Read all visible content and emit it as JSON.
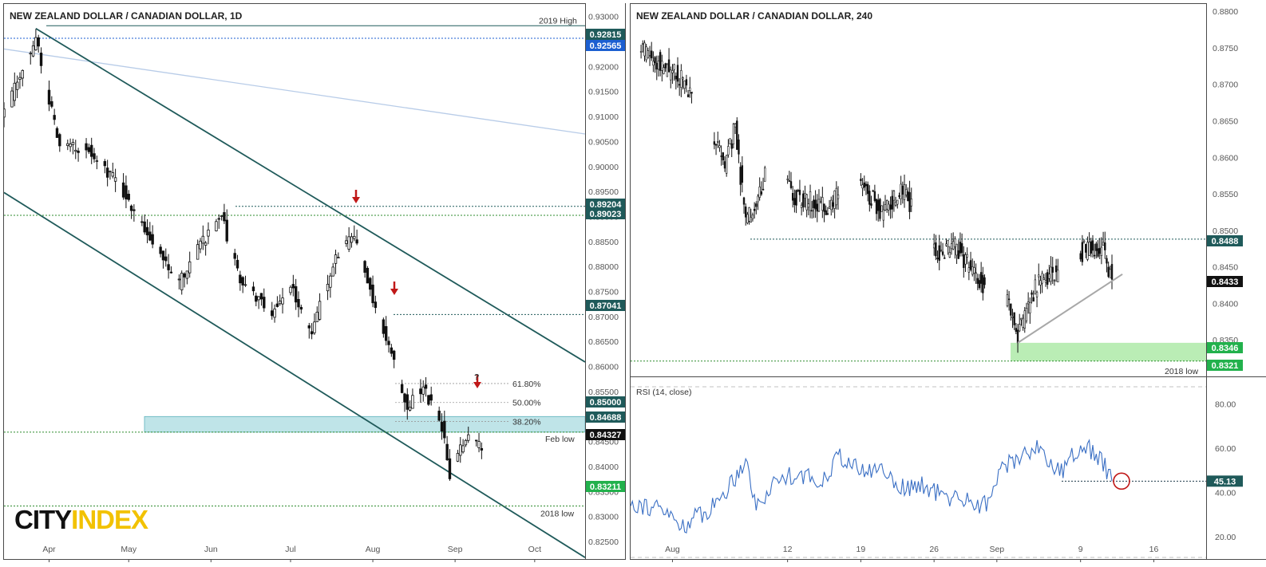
{
  "colors": {
    "candle": "#111111",
    "channel": "#1f5a5a",
    "level_green": "#2e8b2e",
    "level_blue": "#1c5fd1",
    "zone_teal": "#a9dbe0",
    "support_green": "#a9e8a3",
    "rsi_line": "#3a6fc4",
    "arrow_red": "#c01818",
    "tag_teal": "#1f5a5a",
    "tag_blue": "#1c5fd1",
    "tag_green": "#22b14c",
    "tag_black": "#111111"
  },
  "left_chart": {
    "title": "NEW ZEALAND DOLLAR / CANADIAN DOLLAR, 1D",
    "x_labels": [
      "Apr",
      "May",
      "Jun",
      "Jul",
      "Aug",
      "Sep",
      "Oct"
    ],
    "y_labels": [
      "0.93000",
      "0.92500",
      "0.92000",
      "0.91500",
      "0.91000",
      "0.90500",
      "0.90000",
      "0.89500",
      "0.89000",
      "0.88500",
      "0.88000",
      "0.87500",
      "0.87000",
      "0.86500",
      "0.86000",
      "0.85500",
      "0.85000",
      "0.84500",
      "0.84000",
      "0.83500",
      "0.83000",
      "0.82500"
    ],
    "annotations": {
      "high_2019": "2019 High",
      "feb_low": "Feb low",
      "low_2018": "2018 low",
      "fib_618": "61.80%",
      "fib_50": "50.00%",
      "fib_382": "38.20%",
      "question": "?"
    },
    "price_tags": [
      {
        "text": "0.92815",
        "color": "tag_teal"
      },
      {
        "text": "0.92565",
        "color": "tag_blue"
      },
      {
        "text": "0.89204",
        "color": "tag_teal"
      },
      {
        "text": "0.89023",
        "color": "tag_teal"
      },
      {
        "text": "0.87041",
        "color": "tag_teal"
      },
      {
        "text": "0.85000",
        "color": "tag_teal"
      },
      {
        "text": "0.84688",
        "color": "tag_teal"
      },
      {
        "text": "0.84327",
        "color": "tag_black"
      },
      {
        "text": "0.83211",
        "color": "tag_green"
      }
    ],
    "logo": "CITYINDEX"
  },
  "right_chart": {
    "title": "NEW ZEALAND DOLLAR / CANADIAN DOLLAR, 240",
    "x_labels": [
      "Aug",
      "12",
      "19",
      "26",
      "Sep",
      "9",
      "16"
    ],
    "y_labels": [
      "0.8800",
      "0.8750",
      "0.8700",
      "0.8650",
      "0.8600",
      "0.8550",
      "0.8500",
      "0.8450",
      "0.8400",
      "0.8350"
    ],
    "annotations": {
      "low_2018": "2018 low"
    },
    "price_tags": [
      {
        "text": "0.8488",
        "color": "tag_teal"
      },
      {
        "text": "0.8433",
        "color": "tag_black"
      },
      {
        "text": "0.8346",
        "color": "tag_green"
      },
      {
        "text": "0.8321",
        "color": "tag_green"
      }
    ],
    "rsi": {
      "label": "RSI (14, close)",
      "y_labels": [
        "80.00",
        "60.00",
        "40.00",
        "20.00"
      ],
      "value_tag": "45.13"
    }
  },
  "chart_data": [
    {
      "type": "candlestick",
      "title": "NEW ZEALAND DOLLAR / CANADIAN DOLLAR, 1D",
      "ylim": [
        0.8215,
        0.9325
      ],
      "x_range": [
        "2019-03-15",
        "2019-10-20"
      ],
      "grid": false,
      "close_path": [
        [
          "2019-03-15",
          0.9105
        ],
        [
          "2019-03-27",
          0.9255
        ],
        [
          "2019-04-05",
          0.9035
        ],
        [
          "2019-04-15",
          0.904
        ],
        [
          "2019-04-29",
          0.895
        ],
        [
          "2019-05-20",
          0.8765
        ],
        [
          "2019-05-28",
          0.8845
        ],
        [
          "2019-06-05",
          0.89
        ],
        [
          "2019-06-12",
          0.877
        ],
        [
          "2019-06-24",
          0.871
        ],
        [
          "2019-07-01",
          0.876
        ],
        [
          "2019-07-09",
          0.867
        ],
        [
          "2019-07-18",
          0.882
        ],
        [
          "2019-07-25",
          0.886
        ],
        [
          "2019-08-01",
          0.8735
        ],
        [
          "2019-08-06",
          0.866
        ],
        [
          "2019-08-09",
          0.861
        ],
        [
          "2019-08-14",
          0.852
        ],
        [
          "2019-08-20",
          0.8555
        ],
        [
          "2019-08-27",
          0.848
        ],
        [
          "2019-08-30",
          0.838
        ],
        [
          "2019-09-06",
          0.847
        ],
        [
          "2019-09-11",
          0.8433
        ]
      ],
      "horizontal_levels": [
        {
          "label": "2019 High",
          "value": 0.92815
        },
        {
          "value": 0.92565
        },
        {
          "value": 0.89204
        },
        {
          "value": 0.89023
        },
        {
          "value": 0.87041
        },
        {
          "value": 0.85
        },
        {
          "label": "Feb low",
          "value": 0.84688
        },
        {
          "label": "2018 low",
          "value": 0.83211
        }
      ],
      "fibonacci": [
        {
          "label": "61.80%",
          "value": 0.8566
        },
        {
          "label": "50.00%",
          "value": 0.8528
        },
        {
          "label": "38.20%",
          "value": 0.849
        }
      ],
      "zone": {
        "from": 0.84688,
        "to": 0.85
      },
      "channel_upper": [
        [
          "2019-03-27",
          0.9276
        ],
        [
          "2019-10-20",
          0.8609
        ]
      ],
      "channel_lower": [
        [
          "2019-03-15",
          0.8948
        ],
        [
          "2019-10-20",
          0.8218
        ]
      ],
      "faint_trendline": [
        [
          "2019-03-15",
          0.9235
        ],
        [
          "2019-10-20",
          0.9065
        ]
      ],
      "last_price": 0.84327
    },
    {
      "type": "candlestick",
      "title": "NEW ZEALAND DOLLAR / CANADIAN DOLLAR, 240",
      "ylim": [
        0.83,
        0.881
      ],
      "x_range": [
        "2019-07-28",
        "2019-09-21"
      ],
      "grid": false,
      "close_path": [
        [
          "2019-07-28",
          0.876
        ],
        [
          "2019-08-02",
          0.8705
        ],
        [
          "2019-08-06",
          0.859
        ],
        [
          "2019-08-07",
          0.864
        ],
        [
          "2019-08-08",
          0.851
        ],
        [
          "2019-08-10",
          0.858
        ],
        [
          "2019-08-13",
          0.8545
        ],
        [
          "2019-08-16",
          0.853
        ],
        [
          "2019-08-18",
          0.8585
        ],
        [
          "2019-08-21",
          0.8525
        ],
        [
          "2019-08-23",
          0.8555
        ],
        [
          "2019-08-26",
          0.847
        ],
        [
          "2019-08-28",
          0.848
        ],
        [
          "2019-08-30",
          0.8435
        ],
        [
          "2019-09-02",
          0.84
        ],
        [
          "2019-09-03",
          0.836
        ],
        [
          "2019-09-05",
          0.843
        ],
        [
          "2019-09-07",
          0.8445
        ],
        [
          "2019-09-09",
          0.847
        ],
        [
          "2019-09-11",
          0.848
        ],
        [
          "2019-09-12",
          0.8433
        ]
      ],
      "horizontal_levels": [
        {
          "value": 0.8488
        },
        {
          "value": 0.8346
        },
        {
          "label": "2018 low",
          "value": 0.8321
        }
      ],
      "zone": {
        "from": 0.8321,
        "to": 0.8346
      },
      "trendline": [
        [
          "2019-09-03",
          0.8346
        ],
        [
          "2019-09-13",
          0.844
        ]
      ],
      "last_price": 0.8433
    },
    {
      "type": "line",
      "title": "RSI (14, close)",
      "ylim": [
        10,
        92
      ],
      "x_range": [
        "2019-07-28",
        "2019-09-21"
      ],
      "levels": [
        30,
        70
      ],
      "series": [
        {
          "name": "RSI (14, close)",
          "points": [
            [
              "2019-07-28",
              36
            ],
            [
              "2019-07-31",
              32
            ],
            [
              "2019-08-02",
              25
            ],
            [
              "2019-08-05",
              34
            ],
            [
              "2019-08-07",
              47
            ],
            [
              "2019-08-08",
              56
            ],
            [
              "2019-08-09",
              33
            ],
            [
              "2019-08-11",
              46
            ],
            [
              "2019-08-13",
              49
            ],
            [
              "2019-08-15",
              44
            ],
            [
              "2019-08-17",
              57
            ],
            [
              "2019-08-19",
              49
            ],
            [
              "2019-08-21",
              51
            ],
            [
              "2019-08-23",
              42
            ],
            [
              "2019-08-25",
              43
            ],
            [
              "2019-08-27",
              38
            ],
            [
              "2019-08-29",
              37
            ],
            [
              "2019-08-31",
              34
            ],
            [
              "2019-09-01",
              48
            ],
            [
              "2019-09-03",
              56
            ],
            [
              "2019-09-05",
              61
            ],
            [
              "2019-09-07",
              48
            ],
            [
              "2019-09-09",
              62
            ],
            [
              "2019-09-11",
              55
            ],
            [
              "2019-09-12",
              45.13
            ]
          ]
        }
      ],
      "last_value": 45.13
    }
  ]
}
